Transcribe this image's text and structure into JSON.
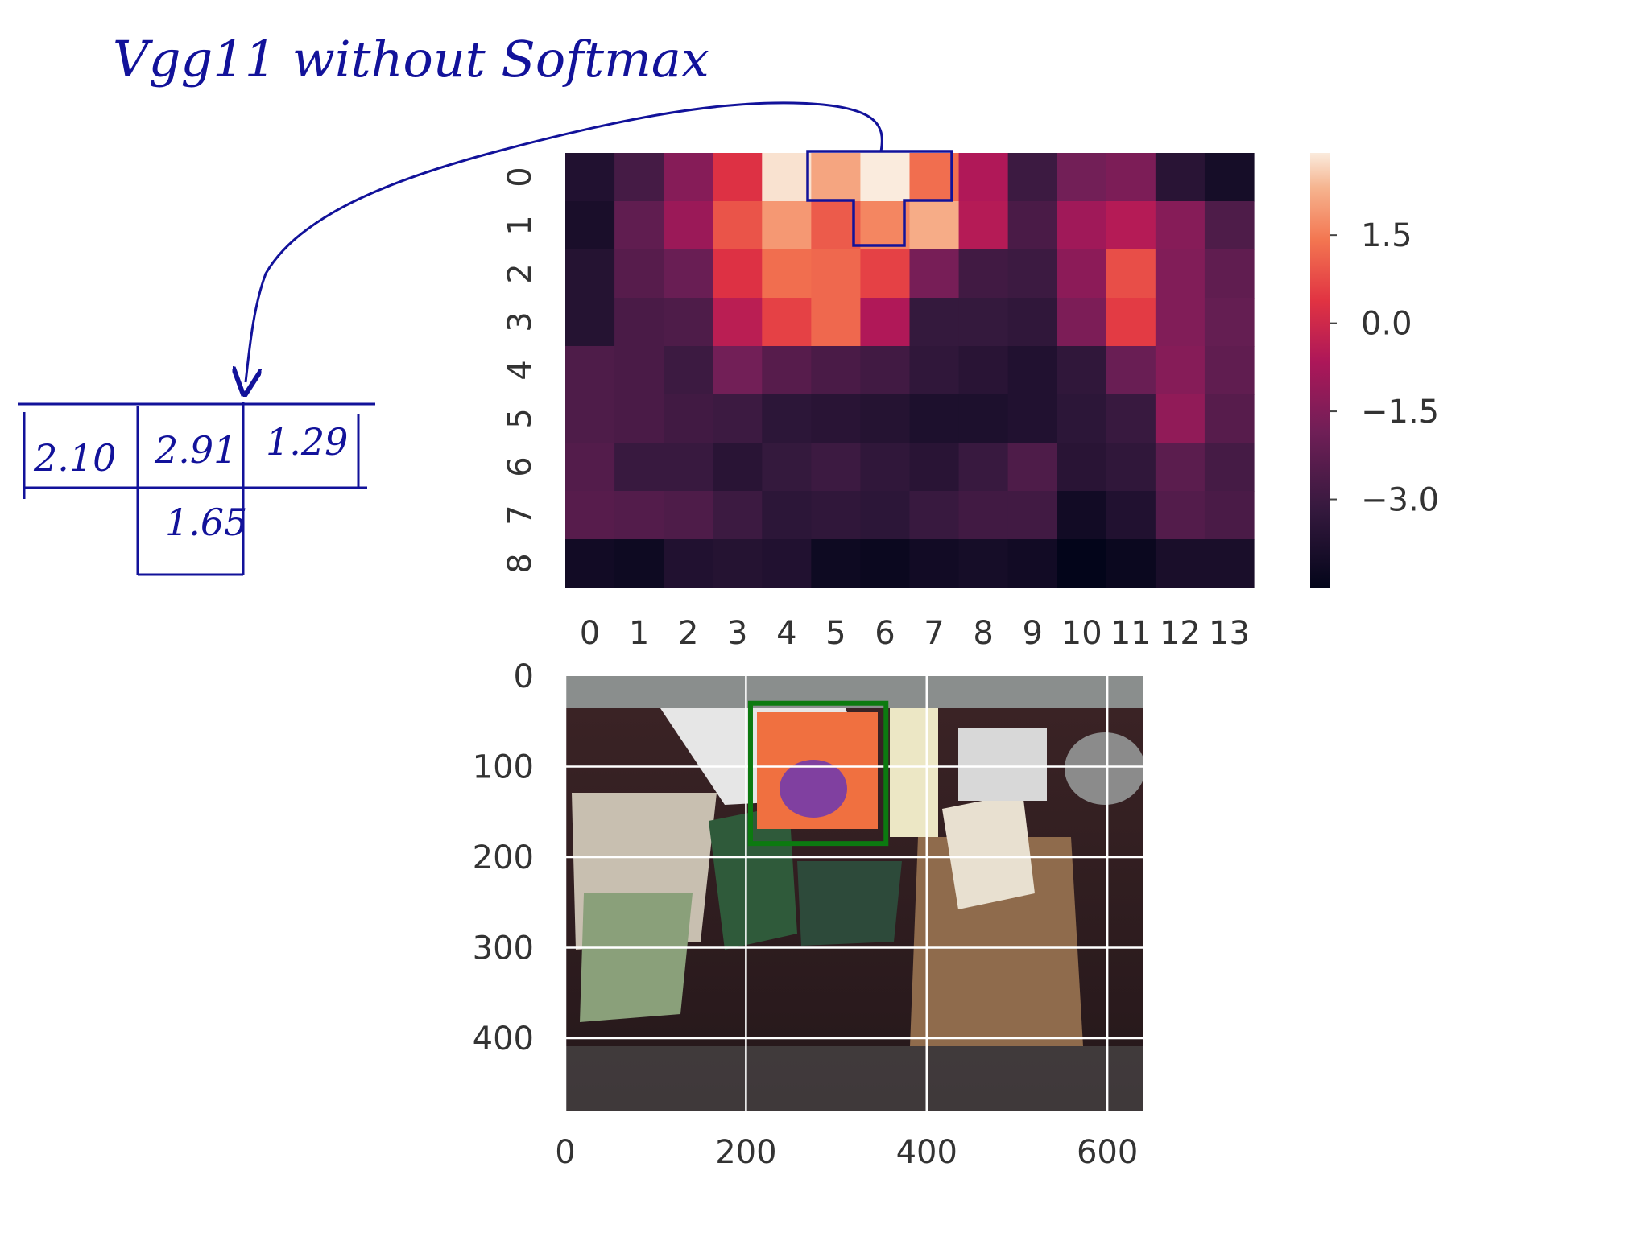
{
  "annotation": {
    "title": "Vgg11 without Softmax",
    "ink_color": "#12129a",
    "box_values": [
      "2.10",
      "2.91",
      "1.29",
      "1.65"
    ]
  },
  "chart_data": [
    {
      "type": "heatmap",
      "title": "",
      "xlabel": "",
      "ylabel": "",
      "x_ticks": [
        "0",
        "1",
        "2",
        "3",
        "4",
        "5",
        "6",
        "7",
        "8",
        "9",
        "10",
        "11",
        "12",
        "13"
      ],
      "y_ticks": [
        "0",
        "1",
        "2",
        "3",
        "4",
        "5",
        "6",
        "7",
        "8"
      ],
      "colorbar": {
        "ticks": [
          "1.5",
          "0.0",
          "−1.5",
          "−3.0"
        ],
        "tick_values": [
          1.5,
          0.0,
          -1.5,
          -3.0
        ],
        "range": [
          -4.5,
          2.9
        ],
        "colormap": "rocket"
      },
      "values": [
        [
          -3.7,
          -2.8,
          -1.4,
          0.3,
          2.8,
          2.1,
          2.91,
          1.29,
          -0.6,
          -3.0,
          -1.8,
          -1.6,
          -3.5,
          -4.0
        ],
        [
          -3.9,
          -2.2,
          -1.0,
          0.9,
          1.9,
          1.0,
          1.65,
          2.2,
          -0.5,
          -2.7,
          -0.9,
          -0.5,
          -1.4,
          -2.6
        ],
        [
          -3.6,
          -2.4,
          -2.0,
          0.3,
          1.3,
          1.2,
          0.6,
          -1.7,
          -2.9,
          -3.0,
          -1.3,
          0.8,
          -1.5,
          -2.2
        ],
        [
          -3.6,
          -2.7,
          -2.6,
          -0.4,
          0.6,
          1.2,
          -0.6,
          -3.2,
          -3.2,
          -3.3,
          -1.6,
          0.5,
          -1.5,
          -2.1
        ],
        [
          -2.6,
          -2.7,
          -3.0,
          -1.8,
          -2.4,
          -2.7,
          -2.9,
          -3.3,
          -3.5,
          -3.7,
          -3.3,
          -2.0,
          -1.4,
          -2.2
        ],
        [
          -2.6,
          -2.7,
          -2.9,
          -3.0,
          -3.4,
          -3.5,
          -3.6,
          -3.8,
          -3.8,
          -3.7,
          -3.4,
          -3.1,
          -1.2,
          -2.4
        ],
        [
          -2.5,
          -3.1,
          -3.1,
          -3.5,
          -3.2,
          -3.0,
          -3.3,
          -3.5,
          -3.1,
          -2.6,
          -3.5,
          -3.3,
          -2.3,
          -2.8
        ],
        [
          -2.4,
          -2.5,
          -2.6,
          -3.0,
          -3.4,
          -3.3,
          -3.4,
          -3.1,
          -2.9,
          -2.9,
          -4.1,
          -3.7,
          -2.5,
          -2.7
        ],
        [
          -4.1,
          -4.2,
          -3.7,
          -3.6,
          -3.7,
          -4.2,
          -4.3,
          -4.1,
          -4.0,
          -4.1,
          -4.5,
          -4.3,
          -3.9,
          -3.9
        ]
      ]
    },
    {
      "type": "image",
      "title": "",
      "xlabel": "",
      "ylabel": "",
      "x_ticks": [
        "0",
        "200",
        "400",
        "600"
      ],
      "y_ticks": [
        "0",
        "100",
        "200",
        "300",
        "400"
      ],
      "xlim": [
        0,
        640
      ],
      "ylim": [
        480,
        0
      ],
      "gridlines_x": [
        0,
        200,
        400,
        600
      ],
      "gridlines_y": [
        100,
        200,
        300,
        400
      ],
      "bounding_box": {
        "x0": 205,
        "y0": 30,
        "x1": 355,
        "y1": 185,
        "color": "#0c7a10"
      }
    }
  ]
}
